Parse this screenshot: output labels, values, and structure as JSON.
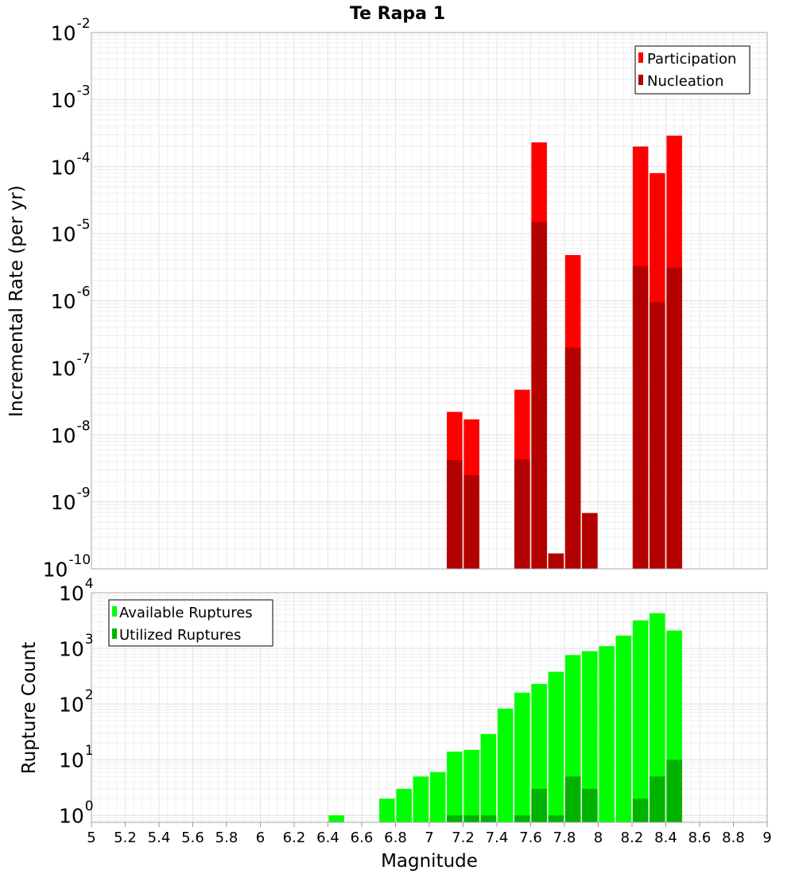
{
  "chart_data": [
    {
      "type": "bar",
      "title": "Te Rapa 1",
      "ylabel": "Incremental Rate (per yr)",
      "xlabel": "",
      "yscale": "log",
      "ylim": [
        1e-10,
        0.01
      ],
      "xlim": [
        5,
        9
      ],
      "y_ticks": [
        {
          "base": "10",
          "exp": "-10"
        },
        {
          "base": "10",
          "exp": "-9"
        },
        {
          "base": "10",
          "exp": "-8"
        },
        {
          "base": "10",
          "exp": "-7"
        },
        {
          "base": "10",
          "exp": "-6"
        },
        {
          "base": "10",
          "exp": "-5"
        },
        {
          "base": "10",
          "exp": "-4"
        },
        {
          "base": "10",
          "exp": "-3"
        },
        {
          "base": "10",
          "exp": "-2"
        }
      ],
      "legend_position": "top-right",
      "grid": true,
      "series": [
        {
          "name": "Participation",
          "color": "#ff0000",
          "x": [
            7.15,
            7.25,
            7.55,
            7.65,
            7.75,
            7.85,
            7.95,
            8.25,
            8.35,
            8.45
          ],
          "values": [
            2.2e-08,
            1.7e-08,
            4.7e-08,
            0.00023,
            1.7e-10,
            4.8e-06,
            6.8e-10,
            0.0002,
            8e-05,
            0.00029
          ]
        },
        {
          "name": "Nucleation",
          "color": "#b30000",
          "x": [
            7.15,
            7.25,
            7.55,
            7.65,
            7.75,
            7.85,
            7.95,
            8.25,
            8.35,
            8.45
          ],
          "values": [
            4.2e-09,
            2.5e-09,
            4.3e-09,
            1.5e-05,
            1.7e-10,
            2e-07,
            6.8e-10,
            3.3e-06,
            9.5e-07,
            3.1e-06
          ]
        }
      ]
    },
    {
      "type": "bar",
      "title": "",
      "ylabel": "Rupture Count",
      "xlabel": "Magnitude",
      "yscale": "log",
      "ylim": [
        0.75,
        10000
      ],
      "xlim": [
        5,
        9
      ],
      "x_ticks": [
        "5",
        "5.2",
        "5.4",
        "5.6",
        "5.8",
        "6",
        "6.2",
        "6.4",
        "6.6",
        "6.8",
        "7",
        "7.2",
        "7.4",
        "7.6",
        "7.8",
        "8",
        "8.2",
        "8.4",
        "8.6",
        "8.8",
        "9"
      ],
      "y_ticks": [
        {
          "base": "10",
          "exp": "0"
        },
        {
          "base": "10",
          "exp": "1"
        },
        {
          "base": "10",
          "exp": "2"
        },
        {
          "base": "10",
          "exp": "3"
        },
        {
          "base": "10",
          "exp": "4"
        }
      ],
      "legend_position": "top-left",
      "grid": true,
      "series": [
        {
          "name": "Available Ruptures",
          "color": "#00ff00",
          "x": [
            6.45,
            6.75,
            6.85,
            6.95,
            7.05,
            7.15,
            7.25,
            7.35,
            7.45,
            7.55,
            7.65,
            7.75,
            7.85,
            7.95,
            8.05,
            8.15,
            8.25,
            8.35,
            8.45
          ],
          "values": [
            1,
            2,
            3,
            5,
            6,
            14,
            15,
            29,
            83,
            160,
            230,
            380,
            760,
            890,
            1100,
            1700,
            3200,
            4300,
            2100
          ]
        },
        {
          "name": "Utilized Ruptures",
          "color": "#00b300",
          "x": [
            7.15,
            7.25,
            7.35,
            7.55,
            7.65,
            7.75,
            7.85,
            7.95,
            8.25,
            8.35,
            8.45
          ],
          "values": [
            1,
            1,
            1,
            1,
            3,
            1,
            5,
            3,
            2,
            5,
            10
          ]
        }
      ]
    }
  ]
}
